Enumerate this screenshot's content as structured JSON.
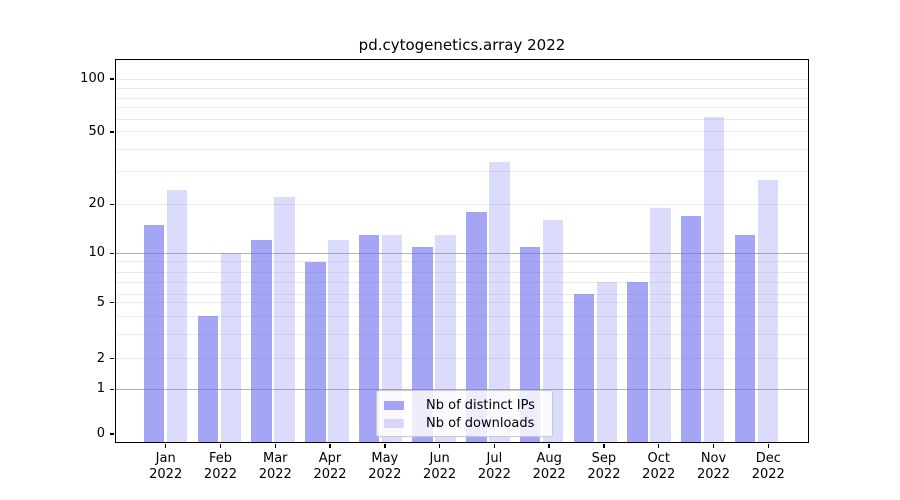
{
  "chart_data": {
    "type": "bar",
    "title": "pd.cytogenetics.array 2022",
    "x_categories": [
      {
        "month": "Jan",
        "year": "2022"
      },
      {
        "month": "Feb",
        "year": "2022"
      },
      {
        "month": "Mar",
        "year": "2022"
      },
      {
        "month": "Apr",
        "year": "2022"
      },
      {
        "month": "May",
        "year": "2022"
      },
      {
        "month": "Jun",
        "year": "2022"
      },
      {
        "month": "Jul",
        "year": "2022"
      },
      {
        "month": "Aug",
        "year": "2022"
      },
      {
        "month": "Sep",
        "year": "2022"
      },
      {
        "month": "Oct",
        "year": "2022"
      },
      {
        "month": "Nov",
        "year": "2022"
      },
      {
        "month": "Dec",
        "year": "2022"
      }
    ],
    "series": [
      {
        "name": "Nb of distinct IPs",
        "color": "rgba(110,110,240,0.62)",
        "values": [
          15,
          4,
          12,
          9,
          13,
          11,
          18,
          11,
          6,
          7,
          17,
          13
        ]
      },
      {
        "name": "Nb of downloads",
        "color": "rgba(110,110,240,0.25)",
        "values": [
          24,
          10,
          22,
          12,
          13,
          13,
          34,
          16,
          7,
          19,
          62,
          27
        ]
      }
    ],
    "yscale": "symlog",
    "ytick_labels": [
      "100",
      "50",
      "20",
      "10",
      "5",
      "2",
      "1",
      "0"
    ],
    "ytick_values": [
      100,
      50,
      20,
      10,
      5,
      2,
      1,
      0
    ],
    "gridline_values": [
      1,
      2,
      3,
      4,
      5,
      6,
      7,
      8,
      9,
      10,
      20,
      30,
      40,
      50,
      60,
      70,
      80,
      90,
      100
    ],
    "major_gridline_values": [
      1,
      10
    ],
    "ylim": [
      0,
      120
    ],
    "grid": "on",
    "legend_position": "lower center",
    "colors": {
      "grid_minor": "#ebebeb",
      "grid_major": "#b2b2b2",
      "axis": "#000000"
    }
  }
}
